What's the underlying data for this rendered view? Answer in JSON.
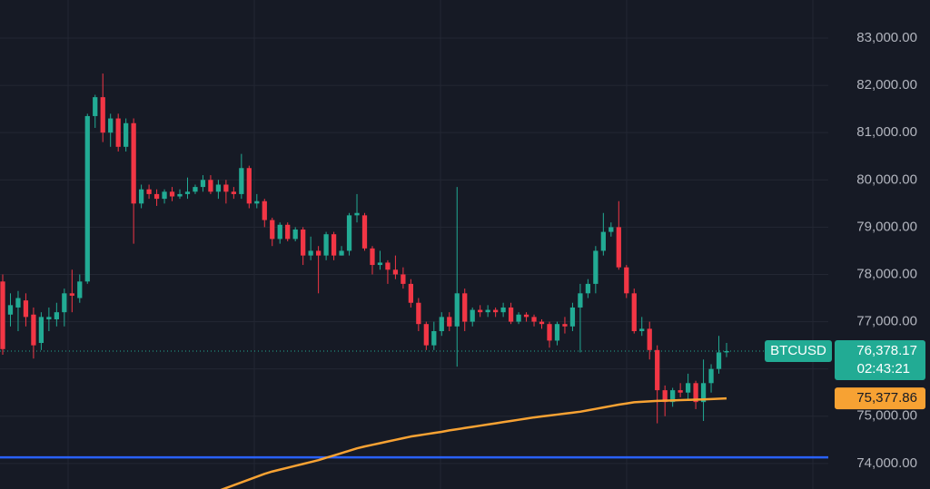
{
  "chart_data": {
    "type": "candlestick",
    "symbol": "BTCUSD",
    "up_color": "#22ab94",
    "down_color": "#f23645",
    "ma_color": "#f7a233",
    "open": [
      77850,
      77150,
      77300,
      77450,
      77150,
      76550,
      77050,
      77050,
      77200,
      77600,
      77500,
      77850,
      81350,
      81750,
      81000,
      81300,
      80700,
      81200,
      79500,
      79800,
      79700,
      79600,
      79750,
      79650,
      79700,
      79750,
      79850,
      80000,
      79750,
      79900,
      79750,
      79700,
      80250,
      79500,
      79550,
      79150,
      78750,
      79050,
      78750,
      78950,
      78400,
      78500,
      78400,
      78850,
      78400,
      78500,
      79250,
      79250,
      78550,
      78200,
      78250,
      78100,
      78000,
      77800,
      77400,
      76950,
      76500,
      76800,
      77100,
      76900,
      77600,
      77000,
      77250,
      77200,
      77250,
      77200,
      77300,
      77000,
      77150,
      77100,
      77000,
      76950,
      76600,
      76950,
      76900,
      77300,
      77600,
      77800,
      78500,
      78900,
      79000,
      78150,
      77600,
      76800,
      76850,
      76400,
      75550,
      75300,
      75550,
      75500,
      75700,
      75300,
      75700,
      76000,
      76350
    ],
    "high": [
      78000,
      77600,
      77650,
      77600,
      77300,
      77200,
      77300,
      77400,
      77700,
      78100,
      78000,
      81400,
      81800,
      82250,
      81400,
      81400,
      81300,
      81300,
      79900,
      79900,
      79800,
      79800,
      79850,
      79800,
      80050,
      79900,
      80100,
      80100,
      80000,
      80000,
      79850,
      80550,
      80300,
      79700,
      79600,
      79200,
      79100,
      79100,
      79000,
      79000,
      78800,
      78600,
      78900,
      78900,
      78600,
      79300,
      79700,
      79300,
      78600,
      78500,
      78300,
      78400,
      78150,
      77900,
      77500,
      77000,
      77000,
      77200,
      77200,
      79850,
      77700,
      77300,
      77350,
      77350,
      77300,
      77400,
      77400,
      77200,
      77200,
      77150,
      77050,
      77000,
      77000,
      77100,
      77400,
      77800,
      77900,
      78600,
      79300,
      79100,
      79550,
      78200,
      77700,
      77100,
      77000,
      76500,
      75650,
      75600,
      75700,
      75900,
      75750,
      76200,
      76100,
      76700,
      76550
    ],
    "low": [
      76300,
      76900,
      76800,
      76900,
      76220,
      76400,
      76800,
      76900,
      76900,
      77200,
      77400,
      77800,
      81100,
      80800,
      80700,
      80600,
      80600,
      78650,
      79400,
      79600,
      79450,
      79500,
      79550,
      79600,
      79600,
      79700,
      79750,
      79700,
      79600,
      79500,
      79600,
      79600,
      79400,
      79400,
      79000,
      78600,
      78650,
      78700,
      78700,
      78200,
      78300,
      77600,
      78300,
      78300,
      78400,
      78400,
      79100,
      78500,
      78000,
      78100,
      77800,
      77900,
      77700,
      77300,
      76800,
      76400,
      76400,
      76700,
      76800,
      76050,
      76800,
      76900,
      77100,
      77100,
      77100,
      77100,
      76950,
      76950,
      77000,
      76900,
      76850,
      76450,
      76500,
      76750,
      76800,
      76350,
      77500,
      77600,
      78400,
      78800,
      78100,
      77500,
      76750,
      76700,
      76200,
      74850,
      75000,
      75200,
      75400,
      75350,
      75150,
      74900,
      75500,
      75900,
      76250
    ],
    "close": [
      76420,
      77350,
      77500,
      77100,
      76500,
      77100,
      77100,
      77200,
      77600,
      77550,
      77850,
      81350,
      81750,
      81000,
      81300,
      80700,
      81200,
      79500,
      79800,
      79700,
      79600,
      79750,
      79650,
      79700,
      79750,
      79850,
      80000,
      79750,
      79900,
      79750,
      79700,
      80250,
      79500,
      79550,
      79150,
      78750,
      79050,
      78750,
      78950,
      78400,
      78500,
      78400,
      78850,
      78400,
      78500,
      79250,
      79300,
      78550,
      78200,
      78250,
      78100,
      78000,
      77800,
      77400,
      76950,
      76500,
      76800,
      77100,
      76900,
      77600,
      77000,
      77250,
      77200,
      77250,
      77200,
      77300,
      77000,
      77150,
      77100,
      77000,
      76950,
      76600,
      76950,
      76900,
      77300,
      77600,
      77800,
      78500,
      78900,
      79000,
      78150,
      77600,
      76800,
      76850,
      76400,
      75550,
      75300,
      75550,
      75500,
      75700,
      75300,
      75700,
      76000,
      76350,
      76378.17
    ],
    "ma": [
      null,
      null,
      null,
      null,
      null,
      null,
      null,
      null,
      null,
      null,
      null,
      null,
      null,
      null,
      null,
      null,
      null,
      null,
      null,
      null,
      null,
      null,
      null,
      null,
      null,
      null,
      null,
      null,
      73420,
      73480,
      73540,
      73600,
      73660,
      73720,
      73780,
      73830,
      73870,
      73910,
      73950,
      73990,
      74030,
      74070,
      74120,
      74170,
      74220,
      74270,
      74320,
      74360,
      74395,
      74430,
      74465,
      74500,
      74535,
      74570,
      74595,
      74620,
      74645,
      74670,
      74700,
      74725,
      74750,
      74775,
      74800,
      74825,
      74850,
      74875,
      74900,
      74925,
      74950,
      74975,
      74995,
      75015,
      75035,
      75055,
      75075,
      75095,
      75125,
      75155,
      75185,
      75215,
      75245,
      75270,
      75295,
      75305,
      75315,
      75325,
      75330,
      75335,
      75340,
      75345,
      75350,
      75355,
      75362,
      75370,
      75377.86
    ],
    "ylim": [
      73460,
      83806
    ],
    "yticks": [
      {
        "value": 74000,
        "label": "74,000.00"
      },
      {
        "value": 75000,
        "label": "75,000.00"
      },
      {
        "value": 76000,
        "label": "76,000.00"
      },
      {
        "value": 77000,
        "label": "77,000.00"
      },
      {
        "value": 78000,
        "label": "78,000.00"
      },
      {
        "value": 79000,
        "label": "79,000.00"
      },
      {
        "value": 80000,
        "label": "80,000.00"
      },
      {
        "value": 81000,
        "label": "81,000.00"
      },
      {
        "value": 82000,
        "label": "82,000.00"
      },
      {
        "value": 83000,
        "label": "83,000.00"
      }
    ],
    "grid": true,
    "horizontal_line": {
      "value": 74130,
      "color": "#2962ff"
    },
    "last_price": {
      "value": 76378.17,
      "label": "76,378.17"
    },
    "countdown": "02:43:21",
    "ma_last": {
      "value": 75377.86,
      "label": "75,377.86"
    }
  }
}
